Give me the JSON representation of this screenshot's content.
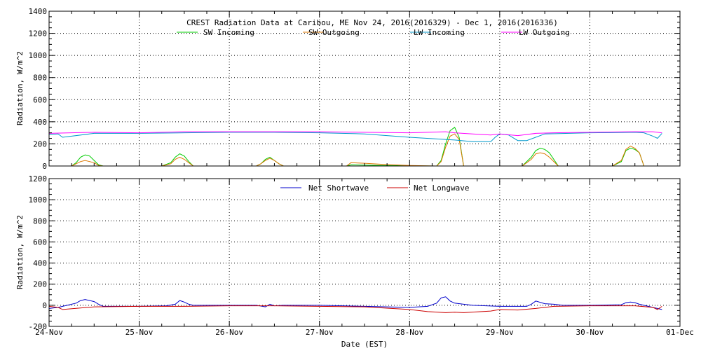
{
  "chart_data": [
    {
      "type": "line",
      "title": "CREST Radiation Data at Caribou, ME   Nov 24, 2016(2016329) - Dec  1, 2016(2016336)",
      "xlabel": "",
      "ylabel": "Radiation, W/m^2",
      "xlim": [
        "2016-11-24",
        "2016-12-01"
      ],
      "ylim": [
        0,
        1400
      ],
      "x_ticks": [
        "24-Nov",
        "25-Nov",
        "26-Nov",
        "27-Nov",
        "28-Nov",
        "29-Nov",
        "30-Nov",
        "01-Dec"
      ],
      "y_ticks": [
        0,
        200,
        400,
        600,
        800,
        1000,
        1200,
        1400
      ],
      "grid": true,
      "legend": "top",
      "series": [
        {
          "name": "SW Incoming",
          "color": "#00cc00",
          "x": [
            0.25,
            0.3,
            0.35,
            0.4,
            0.45,
            0.5,
            0.55,
            0.6,
            1.25,
            1.35,
            1.4,
            1.45,
            1.5,
            1.55,
            1.6,
            2.3,
            2.35,
            2.4,
            2.45,
            2.5,
            2.55,
            2.6,
            3.3,
            3.35,
            3.5,
            3.7,
            4.0,
            4.3,
            4.35,
            4.4,
            4.45,
            4.5,
            4.55,
            4.6,
            5.25,
            5.35,
            5.4,
            5.45,
            5.5,
            5.55,
            5.65,
            6.25,
            6.35,
            6.4,
            6.45,
            6.5,
            6.55,
            6.6
          ],
          "y": [
            0,
            30,
            80,
            100,
            90,
            50,
            10,
            0,
            0,
            30,
            80,
            110,
            90,
            40,
            0,
            0,
            20,
            60,
            80,
            50,
            20,
            0,
            0,
            10,
            8,
            5,
            2,
            0,
            50,
            200,
            320,
            350,
            260,
            0,
            0,
            80,
            140,
            160,
            150,
            120,
            0,
            0,
            40,
            140,
            160,
            150,
            120,
            0
          ]
        },
        {
          "name": "SW Outgoing",
          "color": "#dd7700",
          "x": [
            0.25,
            0.3,
            0.35,
            0.4,
            0.45,
            0.5,
            0.55,
            0.6,
            1.25,
            1.35,
            1.4,
            1.45,
            1.5,
            1.55,
            1.6,
            2.3,
            2.35,
            2.4,
            2.45,
            2.5,
            2.55,
            2.6,
            3.3,
            3.35,
            3.5,
            3.7,
            4.0,
            4.3,
            4.35,
            4.4,
            4.45,
            4.5,
            4.55,
            4.6,
            5.25,
            5.35,
            5.4,
            5.45,
            5.5,
            5.55,
            5.65,
            6.25,
            6.35,
            6.4,
            6.45,
            6.5,
            6.55,
            6.6
          ],
          "y": [
            0,
            20,
            40,
            50,
            40,
            30,
            5,
            0,
            0,
            20,
            60,
            80,
            60,
            30,
            0,
            0,
            20,
            50,
            70,
            50,
            20,
            0,
            0,
            30,
            25,
            15,
            5,
            0,
            40,
            170,
            270,
            290,
            240,
            0,
            0,
            60,
            110,
            120,
            110,
            80,
            0,
            0,
            50,
            150,
            180,
            160,
            120,
            0
          ]
        },
        {
          "name": "LW Incoming",
          "color": "#0099cc",
          "x": [
            0,
            0.1,
            0.15,
            0.5,
            1.0,
            1.5,
            2.0,
            2.5,
            3.0,
            3.5,
            4.0,
            4.5,
            4.7,
            4.9,
            4.95,
            5.0,
            5.1,
            5.2,
            5.3,
            5.5,
            6.0,
            6.5,
            6.6,
            6.7,
            6.75,
            6.8
          ],
          "y": [
            285,
            290,
            260,
            295,
            295,
            300,
            305,
            305,
            300,
            290,
            260,
            235,
            220,
            220,
            260,
            290,
            280,
            230,
            230,
            290,
            300,
            305,
            300,
            270,
            250,
            295
          ]
        },
        {
          "name": "LW Outgoing",
          "color": "#ff00ff",
          "x": [
            0,
            0.5,
            1.0,
            1.5,
            2.0,
            2.5,
            3.0,
            3.5,
            4.0,
            4.2,
            4.4,
            4.5,
            4.7,
            4.9,
            5.0,
            5.2,
            5.4,
            5.6,
            6.0,
            6.5,
            6.7,
            6.8
          ],
          "y": [
            295,
            305,
            300,
            310,
            310,
            310,
            310,
            305,
            300,
            305,
            310,
            300,
            290,
            280,
            290,
            275,
            295,
            300,
            305,
            310,
            310,
            300
          ]
        }
      ]
    },
    {
      "type": "line",
      "title": "",
      "xlabel": "Date (EST)",
      "ylabel": "Radiation, W/m^2",
      "xlim": [
        "2016-11-24",
        "2016-12-01"
      ],
      "ylim": [
        -200,
        1200
      ],
      "x_ticks": [
        "24-Nov",
        "25-Nov",
        "26-Nov",
        "27-Nov",
        "28-Nov",
        "29-Nov",
        "30-Nov",
        "01-Dec"
      ],
      "y_ticks": [
        -200,
        0,
        200,
        400,
        600,
        800,
        1000,
        1200
      ],
      "grid": true,
      "legend": "top",
      "series": [
        {
          "name": "Net Shortwave",
          "color": "#0000cc",
          "x": [
            0,
            0.1,
            0.2,
            0.3,
            0.35,
            0.4,
            0.5,
            0.55,
            0.6,
            1.0,
            1.3,
            1.4,
            1.45,
            1.5,
            1.55,
            1.6,
            2.3,
            2.4,
            2.45,
            2.5,
            2.6,
            3.0,
            3.5,
            4.0,
            4.2,
            4.3,
            4.35,
            4.4,
            4.45,
            4.5,
            4.6,
            4.7,
            5.0,
            5.3,
            5.35,
            5.4,
            5.5,
            5.6,
            5.7,
            6.0,
            6.35,
            6.4,
            6.45,
            6.5,
            6.55,
            6.6,
            6.7,
            6.75,
            6.8
          ],
          "y": [
            -30,
            -20,
            0,
            20,
            45,
            55,
            35,
            10,
            -10,
            -10,
            -5,
            10,
            45,
            30,
            10,
            0,
            0,
            -15,
            10,
            -5,
            0,
            0,
            -10,
            -20,
            -10,
            20,
            70,
            80,
            40,
            20,
            10,
            0,
            -10,
            -10,
            10,
            40,
            15,
            10,
            0,
            0,
            5,
            25,
            30,
            25,
            10,
            0,
            -20,
            -30,
            -40
          ]
        },
        {
          "name": "Net Longwave",
          "color": "#cc0000",
          "x": [
            0,
            0.1,
            0.15,
            0.5,
            1.0,
            1.5,
            2.0,
            2.5,
            3.0,
            3.5,
            4.0,
            4.2,
            4.4,
            4.5,
            4.6,
            4.8,
            4.9,
            5.0,
            5.2,
            5.4,
            5.6,
            6.0,
            6.5,
            6.7,
            6.75,
            6.8
          ],
          "y": [
            -10,
            -20,
            -40,
            -15,
            -10,
            -10,
            -5,
            -5,
            -10,
            -15,
            -40,
            -60,
            -70,
            -65,
            -70,
            -60,
            -55,
            -40,
            -45,
            -30,
            -10,
            -5,
            -5,
            -20,
            -40,
            -10
          ]
        }
      ]
    }
  ]
}
